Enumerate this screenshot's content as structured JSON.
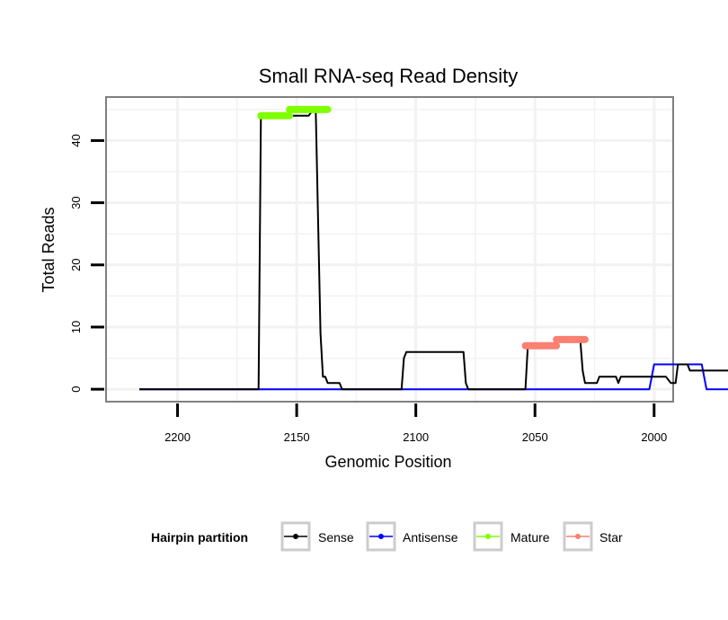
{
  "chart_data": {
    "type": "line",
    "title": "Small RNA-seq Read Density",
    "xlabel": "Genomic Position",
    "ylabel": "Total Reads",
    "xlim": [
      2230,
      1992
    ],
    "x_reversed": true,
    "ylim": [
      -2,
      47
    ],
    "x_ticks": [
      2200,
      2150,
      2100,
      2050,
      2000
    ],
    "x_tick_labels": [
      "2200",
      "2150",
      "2100",
      "2050",
      "2000"
    ],
    "y_ticks": [
      0,
      10,
      20,
      30,
      40
    ],
    "y_tick_labels": [
      "0",
      "10",
      "20",
      "30",
      "40"
    ],
    "grid": true,
    "legend": {
      "title": "Hairpin partition",
      "position": "bottom",
      "entries": [
        {
          "name": "Sense",
          "color": "#000000"
        },
        {
          "name": "Antisense",
          "color": "#0000ff"
        },
        {
          "name": "Mature",
          "color": "#7fff00"
        },
        {
          "name": "Star",
          "color": "#fa8072"
        }
      ]
    },
    "series": [
      {
        "name": "Sense",
        "color": "#000000",
        "kind": "line",
        "points": [
          [
            2216,
            0
          ],
          [
            2166,
            0
          ],
          [
            2165,
            44
          ],
          [
            2145,
            44
          ],
          [
            2143,
            45
          ],
          [
            2142,
            45
          ],
          [
            2140,
            9
          ],
          [
            2139,
            2
          ],
          [
            2138,
            2
          ],
          [
            2137,
            1
          ],
          [
            2132,
            1
          ],
          [
            2131,
            0
          ],
          [
            2106,
            0
          ],
          [
            2105,
            5
          ],
          [
            2104,
            6
          ],
          [
            2080,
            6
          ],
          [
            2079,
            1
          ],
          [
            2078,
            0
          ],
          [
            2054,
            0
          ],
          [
            2053,
            7
          ],
          [
            2042,
            7
          ],
          [
            2041,
            8
          ],
          [
            2031,
            8
          ],
          [
            2030,
            3
          ],
          [
            2029,
            1
          ],
          [
            2024,
            1
          ],
          [
            2023,
            2
          ],
          [
            2016,
            2
          ],
          [
            2015,
            1
          ],
          [
            2014,
            2
          ],
          [
            2002,
            2
          ],
          [
            2001,
            2
          ],
          [
            1995,
            2
          ],
          [
            1993,
            1
          ],
          [
            1991,
            1
          ],
          [
            1990,
            4
          ],
          [
            1986,
            4
          ],
          [
            1985,
            3
          ],
          [
            1967,
            3
          ]
        ]
      },
      {
        "name": "Antisense",
        "color": "#0000ff",
        "kind": "line",
        "points": [
          [
            2216,
            0
          ],
          [
            2002,
            0
          ],
          [
            2000,
            4
          ],
          [
            1980,
            4
          ],
          [
            1978,
            0
          ],
          [
            1967,
            0
          ]
        ]
      },
      {
        "name": "Mature",
        "color": "#7fff00",
        "kind": "segment",
        "segments": [
          {
            "x1": 2165,
            "x2": 2153,
            "y": 44
          },
          {
            "x1": 2153,
            "x2": 2137,
            "y": 45
          }
        ]
      },
      {
        "name": "Star",
        "color": "#fa8072",
        "kind": "segment",
        "segments": [
          {
            "x1": 2054,
            "x2": 2041,
            "y": 7
          },
          {
            "x1": 2041,
            "x2": 2029,
            "y": 8
          }
        ]
      }
    ]
  }
}
